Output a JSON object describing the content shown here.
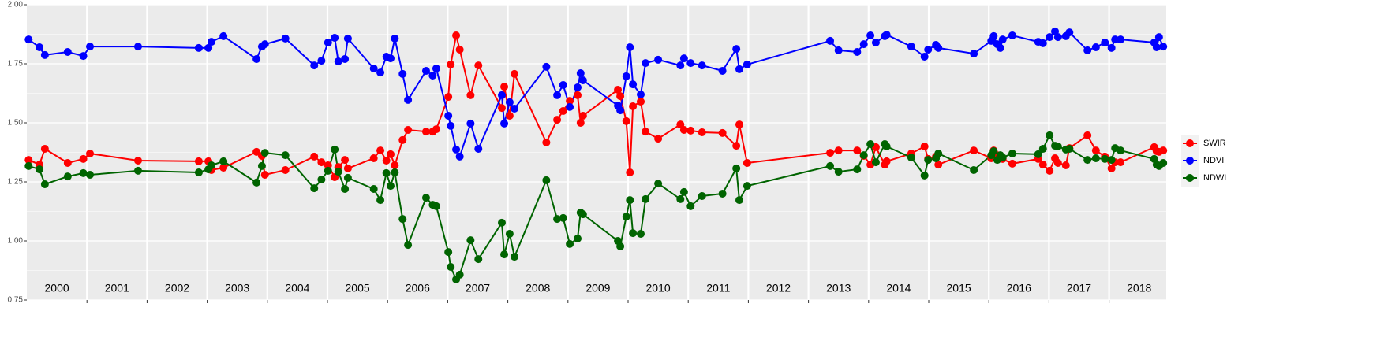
{
  "chart_data": {
    "type": "line",
    "x": [
      2000.03,
      2000.21,
      2000.3,
      2000.68,
      2000.94,
      2001.05,
      2001.85,
      2002.86,
      2003.02,
      2003.07,
      2003.27,
      2003.82,
      2003.91,
      2003.96,
      2004.3,
      2004.78,
      2004.9,
      2005.01,
      2005.12,
      2005.18,
      2005.29,
      2005.34,
      2005.77,
      2005.88,
      2005.98,
      2006.05,
      2006.12,
      2006.25,
      2006.34,
      2006.64,
      2006.75,
      2006.81,
      2007.01,
      2007.05,
      2007.14,
      2007.2,
      2007.38,
      2007.51,
      2007.9,
      2007.94,
      2008.03,
      2008.11,
      2008.64,
      2008.82,
      2008.92,
      2009.03,
      2009.16,
      2009.21,
      2009.25,
      2009.83,
      2009.87,
      2009.97,
      2010.03,
      2010.08,
      2010.21,
      2010.29,
      2010.5,
      2010.87,
      2010.93,
      2011.04,
      2011.23,
      2011.57,
      2011.8,
      2011.85,
      2011.98,
      2013.36,
      2013.5,
      2013.81,
      2013.92,
      2014.03,
      2014.12,
      2014.27,
      2014.3,
      2014.71,
      2014.93,
      2014.99,
      2015.12,
      2015.16,
      2015.75,
      2016.04,
      2016.08,
      2016.14,
      2016.19,
      2016.23,
      2016.39,
      2016.82,
      2016.9,
      2017.01,
      2017.1,
      2017.15,
      2017.28,
      2017.34,
      2017.64,
      2017.78,
      2017.93,
      2018.04,
      2018.1,
      2018.19,
      2018.75,
      2018.79,
      2018.83,
      2018.9
    ],
    "series": [
      {
        "name": "SWIR",
        "color": "#ff0000",
        "values": [
          1.343,
          1.323,
          1.39,
          1.33,
          1.347,
          1.37,
          1.34,
          1.337,
          1.337,
          1.3,
          1.31,
          1.377,
          1.36,
          1.28,
          1.3,
          1.357,
          1.333,
          1.32,
          1.27,
          1.313,
          1.343,
          1.307,
          1.35,
          1.383,
          1.34,
          1.367,
          1.32,
          1.427,
          1.47,
          1.463,
          1.463,
          1.473,
          1.61,
          1.747,
          1.87,
          1.81,
          1.617,
          1.743,
          1.563,
          1.653,
          1.53,
          1.707,
          1.417,
          1.513,
          1.55,
          1.593,
          1.617,
          1.5,
          1.53,
          1.64,
          1.613,
          1.507,
          1.29,
          1.57,
          1.59,
          1.463,
          1.433,
          1.493,
          1.47,
          1.467,
          1.46,
          1.457,
          1.403,
          1.493,
          1.33,
          1.373,
          1.383,
          1.383,
          1.36,
          1.323,
          1.397,
          1.323,
          1.337,
          1.37,
          1.4,
          1.347,
          1.357,
          1.323,
          1.383,
          1.35,
          1.383,
          1.363,
          1.353,
          1.347,
          1.327,
          1.347,
          1.323,
          1.297,
          1.35,
          1.33,
          1.32,
          1.393,
          1.447,
          1.383,
          1.357,
          1.307,
          1.333,
          1.333,
          1.397,
          1.38,
          1.377,
          1.383
        ]
      },
      {
        "name": "NDVI",
        "color": "#0000ff",
        "values": [
          1.853,
          1.82,
          1.787,
          1.8,
          1.783,
          1.823,
          1.823,
          1.817,
          1.817,
          1.843,
          1.867,
          1.77,
          1.823,
          1.833,
          1.857,
          1.743,
          1.763,
          1.84,
          1.86,
          1.76,
          1.77,
          1.857,
          1.73,
          1.713,
          1.78,
          1.773,
          1.857,
          1.707,
          1.597,
          1.72,
          1.7,
          1.73,
          1.53,
          1.487,
          1.387,
          1.357,
          1.497,
          1.39,
          1.617,
          1.497,
          1.587,
          1.56,
          1.737,
          1.617,
          1.66,
          1.567,
          1.65,
          1.71,
          1.68,
          1.573,
          1.553,
          1.697,
          1.82,
          1.663,
          1.62,
          1.753,
          1.767,
          1.743,
          1.773,
          1.753,
          1.743,
          1.72,
          1.813,
          1.727,
          1.747,
          1.847,
          1.807,
          1.8,
          1.833,
          1.87,
          1.84,
          1.867,
          1.873,
          1.823,
          1.78,
          1.81,
          1.83,
          1.817,
          1.793,
          1.847,
          1.867,
          1.833,
          1.817,
          1.853,
          1.87,
          1.843,
          1.837,
          1.863,
          1.887,
          1.863,
          1.867,
          1.883,
          1.807,
          1.82,
          1.84,
          1.817,
          1.853,
          1.853,
          1.84,
          1.82,
          1.863,
          1.823
        ]
      },
      {
        "name": "NDWI",
        "color": "#006400",
        "values": [
          1.317,
          1.303,
          1.24,
          1.273,
          1.287,
          1.28,
          1.297,
          1.29,
          1.303,
          1.32,
          1.337,
          1.247,
          1.317,
          1.373,
          1.363,
          1.223,
          1.26,
          1.297,
          1.387,
          1.293,
          1.22,
          1.267,
          1.22,
          1.173,
          1.287,
          1.233,
          1.29,
          1.093,
          0.983,
          1.183,
          1.153,
          1.147,
          0.953,
          0.89,
          0.837,
          0.857,
          1.003,
          0.923,
          1.077,
          0.943,
          1.03,
          0.933,
          1.257,
          1.093,
          1.097,
          0.987,
          1.01,
          1.12,
          1.113,
          1.0,
          0.977,
          1.103,
          1.173,
          1.033,
          1.03,
          1.177,
          1.243,
          1.177,
          1.207,
          1.147,
          1.19,
          1.2,
          1.307,
          1.173,
          1.233,
          1.317,
          1.293,
          1.303,
          1.363,
          1.41,
          1.333,
          1.41,
          1.4,
          1.353,
          1.277,
          1.343,
          1.35,
          1.37,
          1.3,
          1.363,
          1.38,
          1.343,
          1.363,
          1.353,
          1.37,
          1.367,
          1.39,
          1.447,
          1.403,
          1.4,
          1.387,
          1.39,
          1.343,
          1.35,
          1.347,
          1.343,
          1.393,
          1.383,
          1.347,
          1.323,
          1.317,
          1.33
        ]
      }
    ],
    "annotations": [
      "2000",
      "2001",
      "2002",
      "2003",
      "2004",
      "2005",
      "2006",
      "2007",
      "2008",
      "2009",
      "2010",
      "2011",
      "2012",
      "2013",
      "2014",
      "2015",
      "2016",
      "2017",
      "2018"
    ],
    "xlim": [
      2000,
      2018.95
    ],
    "xticks": [
      2001,
      2002,
      2003,
      2004,
      2005,
      2006,
      2007,
      2008,
      2009,
      2010,
      2011,
      2012,
      2013,
      2014,
      2015,
      2016,
      2017,
      2018
    ],
    "ylim": [
      0.75,
      2.0
    ],
    "yticks": [
      {
        "value": 0.75,
        "label": "0.75"
      },
      {
        "value": 1.0,
        "label": "1.00"
      },
      {
        "value": 1.25,
        "label": "1.25"
      },
      {
        "value": 1.5,
        "label": "1.50"
      },
      {
        "value": 1.75,
        "label": "1.75"
      },
      {
        "value": 2.0,
        "label": "2.00"
      }
    ],
    "grid": true,
    "legend": "right"
  }
}
